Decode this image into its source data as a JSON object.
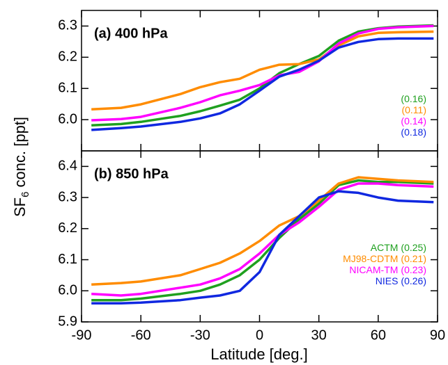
{
  "xlabel": "Latitude [deg.]",
  "ylabel": {
    "main": "SF",
    "subscript": "6",
    "rest": " conc. [ppt]"
  },
  "chart_data": [
    {
      "type": "line",
      "title": "(a) 400 hPa",
      "x": [
        -85,
        -70,
        -60,
        -40,
        -30,
        -20,
        -10,
        0,
        10,
        20,
        30,
        40,
        50,
        60,
        70,
        88
      ],
      "xlim": [
        -90,
        90
      ],
      "xticks": [
        -90,
        -60,
        -30,
        0,
        30,
        60,
        90
      ],
      "ylim": [
        5.9,
        6.35
      ],
      "yticks": [
        {
          "value": 6,
          "label": "6.0"
        },
        6.1,
        6.2,
        6.3
      ],
      "series": [
        {
          "label": "(0.16)",
          "color": "#1fa01f",
          "values": [
            5.982,
            5.986,
            5.993,
            6.012,
            6.027,
            6.045,
            6.064,
            6.1,
            6.149,
            6.178,
            6.204,
            6.253,
            6.282,
            6.293,
            6.298,
            6.302
          ]
        },
        {
          "label": "(0.11)",
          "color": "#ff8c00",
          "values": [
            6.033,
            6.038,
            6.049,
            6.082,
            6.104,
            6.12,
            6.131,
            6.16,
            6.176,
            6.178,
            6.193,
            6.238,
            6.267,
            6.278,
            6.28,
            6.282
          ]
        },
        {
          "label": "(0.14)",
          "color": "#ff00ff",
          "values": [
            5.998,
            6.002,
            6.009,
            6.038,
            6.056,
            6.078,
            6.093,
            6.111,
            6.142,
            6.153,
            6.187,
            6.244,
            6.276,
            6.291,
            6.296,
            6.3
          ]
        },
        {
          "label": "(0.18)",
          "color": "#1028e0",
          "values": [
            5.967,
            5.973,
            5.978,
            5.993,
            6.004,
            6.02,
            6.049,
            6.093,
            6.138,
            6.16,
            6.189,
            6.231,
            6.249,
            6.258,
            6.26,
            6.26
          ]
        }
      ]
    },
    {
      "type": "line",
      "title": "(b) 850 hPa",
      "x": [
        -85,
        -70,
        -60,
        -40,
        -30,
        -20,
        -10,
        0,
        10,
        20,
        30,
        40,
        50,
        60,
        70,
        88
      ],
      "xlim": [
        -90,
        90
      ],
      "xticks": [
        -90,
        -60,
        -30,
        0,
        30,
        60,
        90
      ],
      "ylim": [
        5.9,
        6.45
      ],
      "yticks": [
        5.9,
        {
          "value": 6,
          "label": "6.0"
        },
        6.1,
        6.2,
        6.3,
        6.4
      ],
      "series": [
        {
          "name": "ACTM",
          "label": "(0.25)",
          "color": "#1fa01f",
          "values": [
            5.97,
            5.97,
            5.975,
            5.99,
            6.0,
            6.02,
            6.05,
            6.1,
            6.17,
            6.23,
            6.28,
            6.34,
            6.355,
            6.35,
            6.35,
            6.345
          ]
        },
        {
          "name": "MJ98-CDTM",
          "label": "(0.21)",
          "color": "#ff8c00",
          "values": [
            6.02,
            6.025,
            6.03,
            6.05,
            6.07,
            6.09,
            6.12,
            6.16,
            6.21,
            6.24,
            6.29,
            6.345,
            6.365,
            6.36,
            6.355,
            6.35
          ]
        },
        {
          "name": "NICAM-TM",
          "label": "(0.23)",
          "color": "#ff00ff",
          "values": [
            5.99,
            5.985,
            5.99,
            6.01,
            6.02,
            6.04,
            6.07,
            6.12,
            6.18,
            6.22,
            6.27,
            6.325,
            6.345,
            6.345,
            6.34,
            6.335
          ]
        },
        {
          "name": "NIES",
          "label": "(0.26)",
          "color": "#1028e0",
          "values": [
            5.96,
            5.96,
            5.962,
            5.97,
            5.978,
            5.985,
            6.0,
            6.06,
            6.18,
            6.24,
            6.3,
            6.32,
            6.315,
            6.3,
            6.29,
            6.285
          ]
        }
      ]
    }
  ]
}
